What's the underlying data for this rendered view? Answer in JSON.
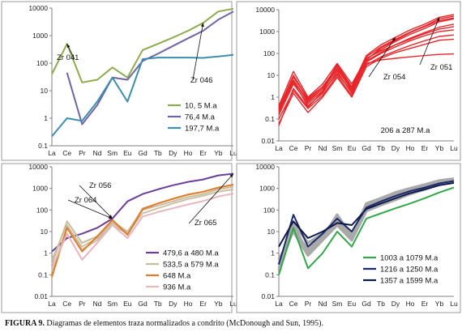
{
  "caption": {
    "label": "FIGURA 9.",
    "text": "Diagramas de elementos traza normalizados a condrito (McDonough and Sun, 1995)."
  },
  "chart_data": [
    {
      "type": "line",
      "panel": "top-left",
      "y_scale": "log",
      "ylim": [
        0.1,
        10000
      ],
      "y_ticks": [
        "0.1",
        "1",
        "10",
        "100",
        "1000",
        "10000"
      ],
      "categories": [
        "La",
        "Ce",
        "Pr",
        "Nd",
        "Sm",
        "Eu",
        "Gd",
        "Tb",
        "Dy",
        "Ho",
        "Er",
        "Yb",
        "Lu"
      ],
      "legend_position": "bottom-right",
      "grid": false,
      "series": [
        {
          "name": "10, 5 M.a",
          "color": "#8cab4e",
          "values": [
            40,
            500,
            20,
            25,
            70,
            30,
            300,
            500,
            850,
            1500,
            2900,
            7500,
            9500
          ]
        },
        {
          "name": "76,4 M.a",
          "color": "#7264a4",
          "values": [
            null,
            45,
            0.6,
            3,
            30,
            25,
            120,
            220,
            420,
            800,
            1500,
            3800,
            7500
          ]
        },
        {
          "name": "197,7 M.a",
          "color": "#3b8fad",
          "values": [
            0.22,
            1,
            0.8,
            4,
            30,
            4,
            140,
            160,
            160,
            160,
            155,
            175,
            200
          ]
        }
      ],
      "annotations": [
        {
          "text": "Zr 041",
          "points_to": "Ce"
        },
        {
          "text": "Zr 046",
          "points_to": "Er"
        }
      ]
    },
    {
      "type": "line",
      "panel": "top-right",
      "y_scale": "log",
      "ylim": [
        0.01,
        10000
      ],
      "y_ticks": [
        "0.01",
        "0.1",
        "1",
        "10",
        "100",
        "1000",
        "10000"
      ],
      "categories": [
        "La",
        "Ce",
        "Pr",
        "Nd",
        "Sm",
        "Eu",
        "Gd",
        "Tb",
        "Dy",
        "Ho",
        "Er",
        "Yb",
        "Lu"
      ],
      "legend_text": "206 a 287 M.a",
      "color": "#e8262a",
      "series": [
        {
          "values": [
            0.25,
            6,
            0.6,
            2.5,
            30,
            3,
            80,
            250,
            550,
            1200,
            2200,
            4500,
            6000
          ]
        },
        {
          "values": [
            0.3,
            10,
            0.8,
            3,
            25,
            2.5,
            70,
            200,
            450,
            950,
            1800,
            3800,
            5000
          ]
        },
        {
          "values": [
            0.15,
            4,
            0.5,
            2,
            20,
            2,
            55,
            150,
            350,
            750,
            1400,
            2800,
            3800
          ]
        },
        {
          "values": [
            0.4,
            15,
            1.0,
            4,
            35,
            4,
            60,
            130,
            250,
            450,
            800,
            1300,
            1700
          ]
        },
        {
          "values": [
            0.2,
            5,
            0.4,
            1.5,
            15,
            1.5,
            40,
            100,
            200,
            380,
            650,
            1000,
            1200
          ]
        },
        {
          "values": [
            0.1,
            2,
            0.3,
            1.2,
            10,
            1.2,
            30,
            70,
            130,
            230,
            380,
            600,
            700
          ]
        },
        {
          "values": [
            0.06,
            1.5,
            0.2,
            1,
            8,
            1,
            25,
            60,
            110,
            170,
            260,
            400,
            450
          ]
        },
        {
          "values": [
            0.35,
            8,
            0.9,
            3,
            20,
            3,
            35,
            50,
            60,
            70,
            80,
            90,
            95
          ]
        },
        {
          "values": [
            0.05,
            2.5,
            0.35,
            1.8,
            12,
            1.8,
            50,
            180,
            400,
            900,
            1700,
            3200,
            4200
          ]
        },
        {
          "values": [
            0.3,
            6,
            0.7,
            2.5,
            18,
            2.5,
            45,
            110,
            250,
            500,
            900,
            1600,
            2200
          ]
        }
      ],
      "annotations": [
        {
          "text": "Zr 054",
          "points_to": "Dy"
        },
        {
          "text": "Zr 051",
          "points_to": "Yb"
        }
      ]
    },
    {
      "type": "line",
      "panel": "bottom-left",
      "y_scale": "log",
      "ylim": [
        0.01,
        10000
      ],
      "y_ticks": [
        "0.01",
        "0.1",
        "1",
        "10",
        "100",
        "1000",
        "10000"
      ],
      "categories": [
        "La",
        "Ce",
        "Pr",
        "Nd",
        "Sm",
        "Eu",
        "Gd",
        "Tb",
        "Dy",
        "Ho",
        "Er",
        "Yb",
        "Lu"
      ],
      "legend_position": "bottom-right",
      "series": [
        {
          "name": "479,6 a 480 M.a",
          "color": "#6a3d9a",
          "values": [
            1.2,
            5,
            8,
            15,
            40,
            250,
            550,
            900,
            1400,
            2000,
            2600,
            4000,
            4800
          ]
        },
        {
          "name": "533,5 a 579 M.a",
          "color": "#c9bc9c",
          "values": [
            0.3,
            30,
            3,
            6,
            30,
            10,
            100,
            160,
            250,
            400,
            550,
            900,
            1200
          ],
          "group_lines": [
            [
              0.15,
              15,
              1.5,
              4,
              20,
              8,
              70,
              120,
              200,
              320,
              450,
              700,
              900
            ],
            [
              0.5,
              20,
              2,
              5,
              25,
              9,
              120,
              200,
              320,
              500,
              700,
              1100,
              1500
            ]
          ]
        },
        {
          "name": "648 M.a",
          "color": "#e07b2a",
          "values": [
            0.08,
            15,
            1.2,
            6,
            35,
            7,
            110,
            200,
            330,
            520,
            700,
            1100,
            1500
          ]
        },
        {
          "name": "936 M.a",
          "color": "#e8b6bc",
          "values": [
            0.2,
            8,
            0.5,
            3,
            20,
            5,
            50,
            80,
            120,
            180,
            260,
            420,
            580
          ]
        }
      ],
      "annotations": [
        {
          "text": "Zr 056",
          "points_to": "Sm"
        },
        {
          "text": "Zr 064",
          "points_to": "Sm"
        },
        {
          "text": "Zr 065",
          "points_to": "Lu"
        }
      ]
    },
    {
      "type": "line",
      "panel": "bottom-right",
      "y_scale": "log",
      "ylim": [
        0.01,
        10000
      ],
      "y_ticks": [
        "0.01",
        "0.1",
        "1",
        "10",
        "100",
        "1000",
        "10000"
      ],
      "categories": [
        "La",
        "Ce",
        "Pr",
        "Nd",
        "Sm",
        "Eu",
        "Gd",
        "Tb",
        "Dy",
        "Ho",
        "Er",
        "Yb",
        "Lu"
      ],
      "legend_position": "bottom-right",
      "background_color": "#a9a9a9",
      "series": [
        {
          "name": "1003 a 1079 M.a",
          "color": "#33a84a",
          "values": [
            0.1,
            15,
            0.2,
            1,
            10,
            2,
            40,
            70,
            120,
            200,
            350,
            650,
            1100
          ]
        },
        {
          "name": "1216 a 1250 M.a",
          "color": "#1b2a6b",
          "values": [
            0.3,
            60,
            2,
            8,
            40,
            10,
            130,
            250,
            450,
            750,
            1100,
            1700,
            2200
          ]
        },
        {
          "name": "1357 a 1599 M.a",
          "color": "#0f1a4a",
          "values": [
            2,
            30,
            5,
            10,
            25,
            20,
            110,
            200,
            350,
            600,
            900,
            1400,
            1800
          ]
        }
      ],
      "background_lines": [
        [
          0.15,
          20,
          1,
          5,
          60,
          6,
          200,
          350,
          650,
          1000,
          1500,
          2300,
          2800
        ],
        [
          0.3,
          25,
          3,
          8,
          40,
          8,
          160,
          280,
          500,
          850,
          1300,
          2000,
          2500
        ],
        [
          0.5,
          10,
          0.8,
          4,
          20,
          4,
          90,
          170,
          300,
          550,
          900,
          1500,
          2000
        ],
        [
          0.2,
          12,
          1.5,
          6,
          30,
          5,
          120,
          230,
          420,
          700,
          1100,
          1800,
          2300
        ]
      ]
    }
  ]
}
